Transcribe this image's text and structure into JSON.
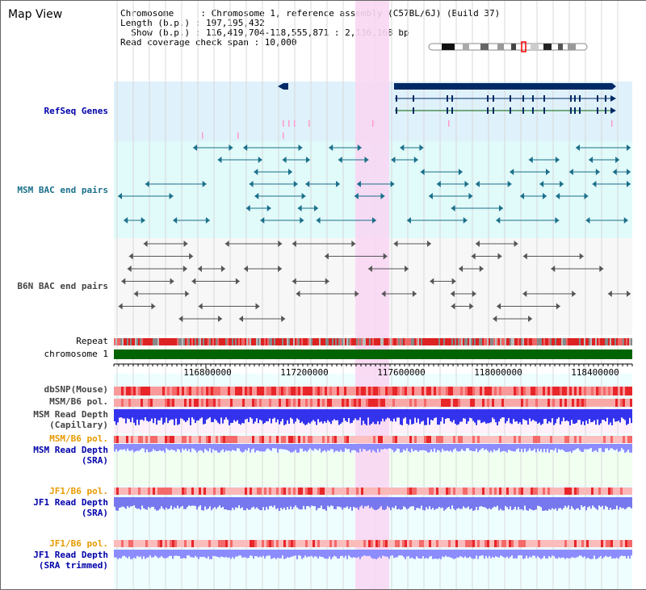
{
  "header": {
    "title": "Map View",
    "info_lines": [
      "Chromosome     : Chromosome 1, reference assembly (C57BL/6J) (Build 37)",
      "Length (b.p.) : 197,195,432",
      "  Show (b.p.) : 116,419,704-118,555,871 : 2,136,168 bp",
      "Read coverage check span : 10,000"
    ]
  },
  "tracks": {
    "refseq": "RefSeq Genes",
    "msm_bac": "MSM BAC end pairs",
    "b6n_bac": "B6N BAC end pairs",
    "repeat": "Repeat",
    "chromosome": "chromosome 1",
    "dbsnp": "dbSNP(Mouse)",
    "msm_pol": "MSM/B6 pol.",
    "msm_depth_cap_1": "MSM Read Depth",
    "msm_depth_cap_2": "(Capillary)",
    "msm_pol_2": "MSM/B6 pol.",
    "msm_depth_sra_1": "MSM Read Depth",
    "msm_depth_sra_2": "(SRA)",
    "jf1_pol": "JF1/B6 pol.",
    "jf1_depth_1": "JF1 Read Depth",
    "jf1_depth_2": "(SRA)",
    "jf1_pol_2": "JF1/B6 pol.",
    "jf1_trim_1": "JF1 Read Depth",
    "jf1_trim_2": "(SRA trimmed)"
  },
  "axis": {
    "ticks": [
      "116800000",
      "117200000",
      "117600000",
      "118000000",
      "118400000"
    ]
  },
  "colors": {
    "refseq_bg": "#dff1fb",
    "msm_bg": "#e1fafa",
    "b6n_bg": "#f7f7f7",
    "highlight": "#f8d7f3",
    "gene": "#002a66",
    "bac_teal": "#1a6f8a",
    "chromosome": "#006400",
    "depth_blue": "#3333ee",
    "depth_light": "#8888ff"
  }
}
